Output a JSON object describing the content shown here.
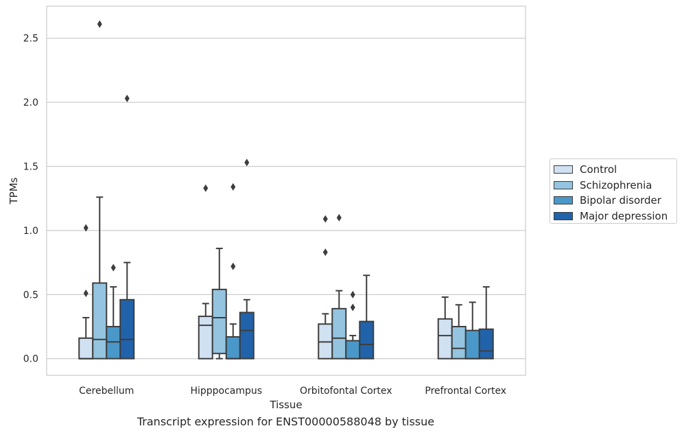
{
  "caption": "Transcript expression for ENST00000588048 by tissue",
  "chart_data": {
    "type": "box",
    "xlabel": "Tissue",
    "ylabel": "TPMs",
    "ylim": [
      -0.13,
      2.75
    ],
    "yticks": [
      0.0,
      0.5,
      1.0,
      1.5,
      2.0,
      2.5
    ],
    "ytick_labels": [
      "0.0",
      "0.5",
      "1.0",
      "1.5",
      "2.0",
      "2.5"
    ],
    "grid": true,
    "legend_placement": "right-center",
    "categories": [
      "Cerebellum",
      "Hipppocampus",
      "Orbitofontal Cortex",
      "Prefrontal Cortex"
    ],
    "series": [
      {
        "name": "Control",
        "color": "#d0e1f2",
        "boxes": [
          {
            "whislo": 0.0,
            "q1": 0.0,
            "median": 0.0,
            "q3": 0.16,
            "whishi": 0.32,
            "fliers": [
              0.51,
              1.02
            ]
          },
          {
            "whislo": 0.0,
            "q1": 0.0,
            "median": 0.26,
            "q3": 0.33,
            "whishi": 0.43,
            "fliers": [
              1.33
            ]
          },
          {
            "whislo": 0.0,
            "q1": 0.0,
            "median": 0.13,
            "q3": 0.27,
            "whishi": 0.35,
            "fliers": [
              0.83,
              1.09
            ]
          },
          {
            "whislo": 0.0,
            "q1": 0.0,
            "median": 0.18,
            "q3": 0.31,
            "whishi": 0.48,
            "fliers": []
          }
        ]
      },
      {
        "name": "Schizophrenia",
        "color": "#94c4df",
        "boxes": [
          {
            "whislo": 0.0,
            "q1": 0.0,
            "median": 0.15,
            "q3": 0.59,
            "whishi": 1.26,
            "fliers": [
              2.61
            ]
          },
          {
            "whislo": 0.0,
            "q1": 0.04,
            "median": 0.32,
            "q3": 0.54,
            "whishi": 0.86,
            "fliers": []
          },
          {
            "whislo": 0.0,
            "q1": 0.0,
            "median": 0.16,
            "q3": 0.39,
            "whishi": 0.53,
            "fliers": [
              1.1
            ]
          },
          {
            "whislo": 0.0,
            "q1": 0.0,
            "median": 0.08,
            "q3": 0.25,
            "whishi": 0.42,
            "fliers": []
          }
        ]
      },
      {
        "name": "Bipolar disorder",
        "color": "#4a98c9",
        "boxes": [
          {
            "whislo": 0.0,
            "q1": 0.0,
            "median": 0.13,
            "q3": 0.25,
            "whishi": 0.56,
            "fliers": [
              0.71
            ]
          },
          {
            "whislo": 0.0,
            "q1": 0.0,
            "median": 0.0,
            "q3": 0.17,
            "whishi": 0.27,
            "fliers": [
              0.72,
              1.34
            ]
          },
          {
            "whislo": 0.0,
            "q1": 0.0,
            "median": 0.0,
            "q3": 0.14,
            "whishi": 0.18,
            "fliers": [
              0.4,
              0.5
            ]
          },
          {
            "whislo": 0.0,
            "q1": 0.0,
            "median": 0.0,
            "q3": 0.22,
            "whishi": 0.44,
            "fliers": []
          }
        ]
      },
      {
        "name": "Major depression",
        "color": "#2163aa",
        "boxes": [
          {
            "whislo": 0.0,
            "q1": 0.0,
            "median": 0.15,
            "q3": 0.46,
            "whishi": 0.75,
            "fliers": [
              2.03
            ]
          },
          {
            "whislo": 0.0,
            "q1": 0.0,
            "median": 0.22,
            "q3": 0.36,
            "whishi": 0.46,
            "fliers": [
              1.53
            ]
          },
          {
            "whislo": 0.0,
            "q1": 0.0,
            "median": 0.11,
            "q3": 0.29,
            "whishi": 0.65,
            "fliers": []
          },
          {
            "whislo": 0.0,
            "q1": 0.0,
            "median": 0.06,
            "q3": 0.23,
            "whishi": 0.56,
            "fliers": []
          }
        ]
      }
    ]
  }
}
